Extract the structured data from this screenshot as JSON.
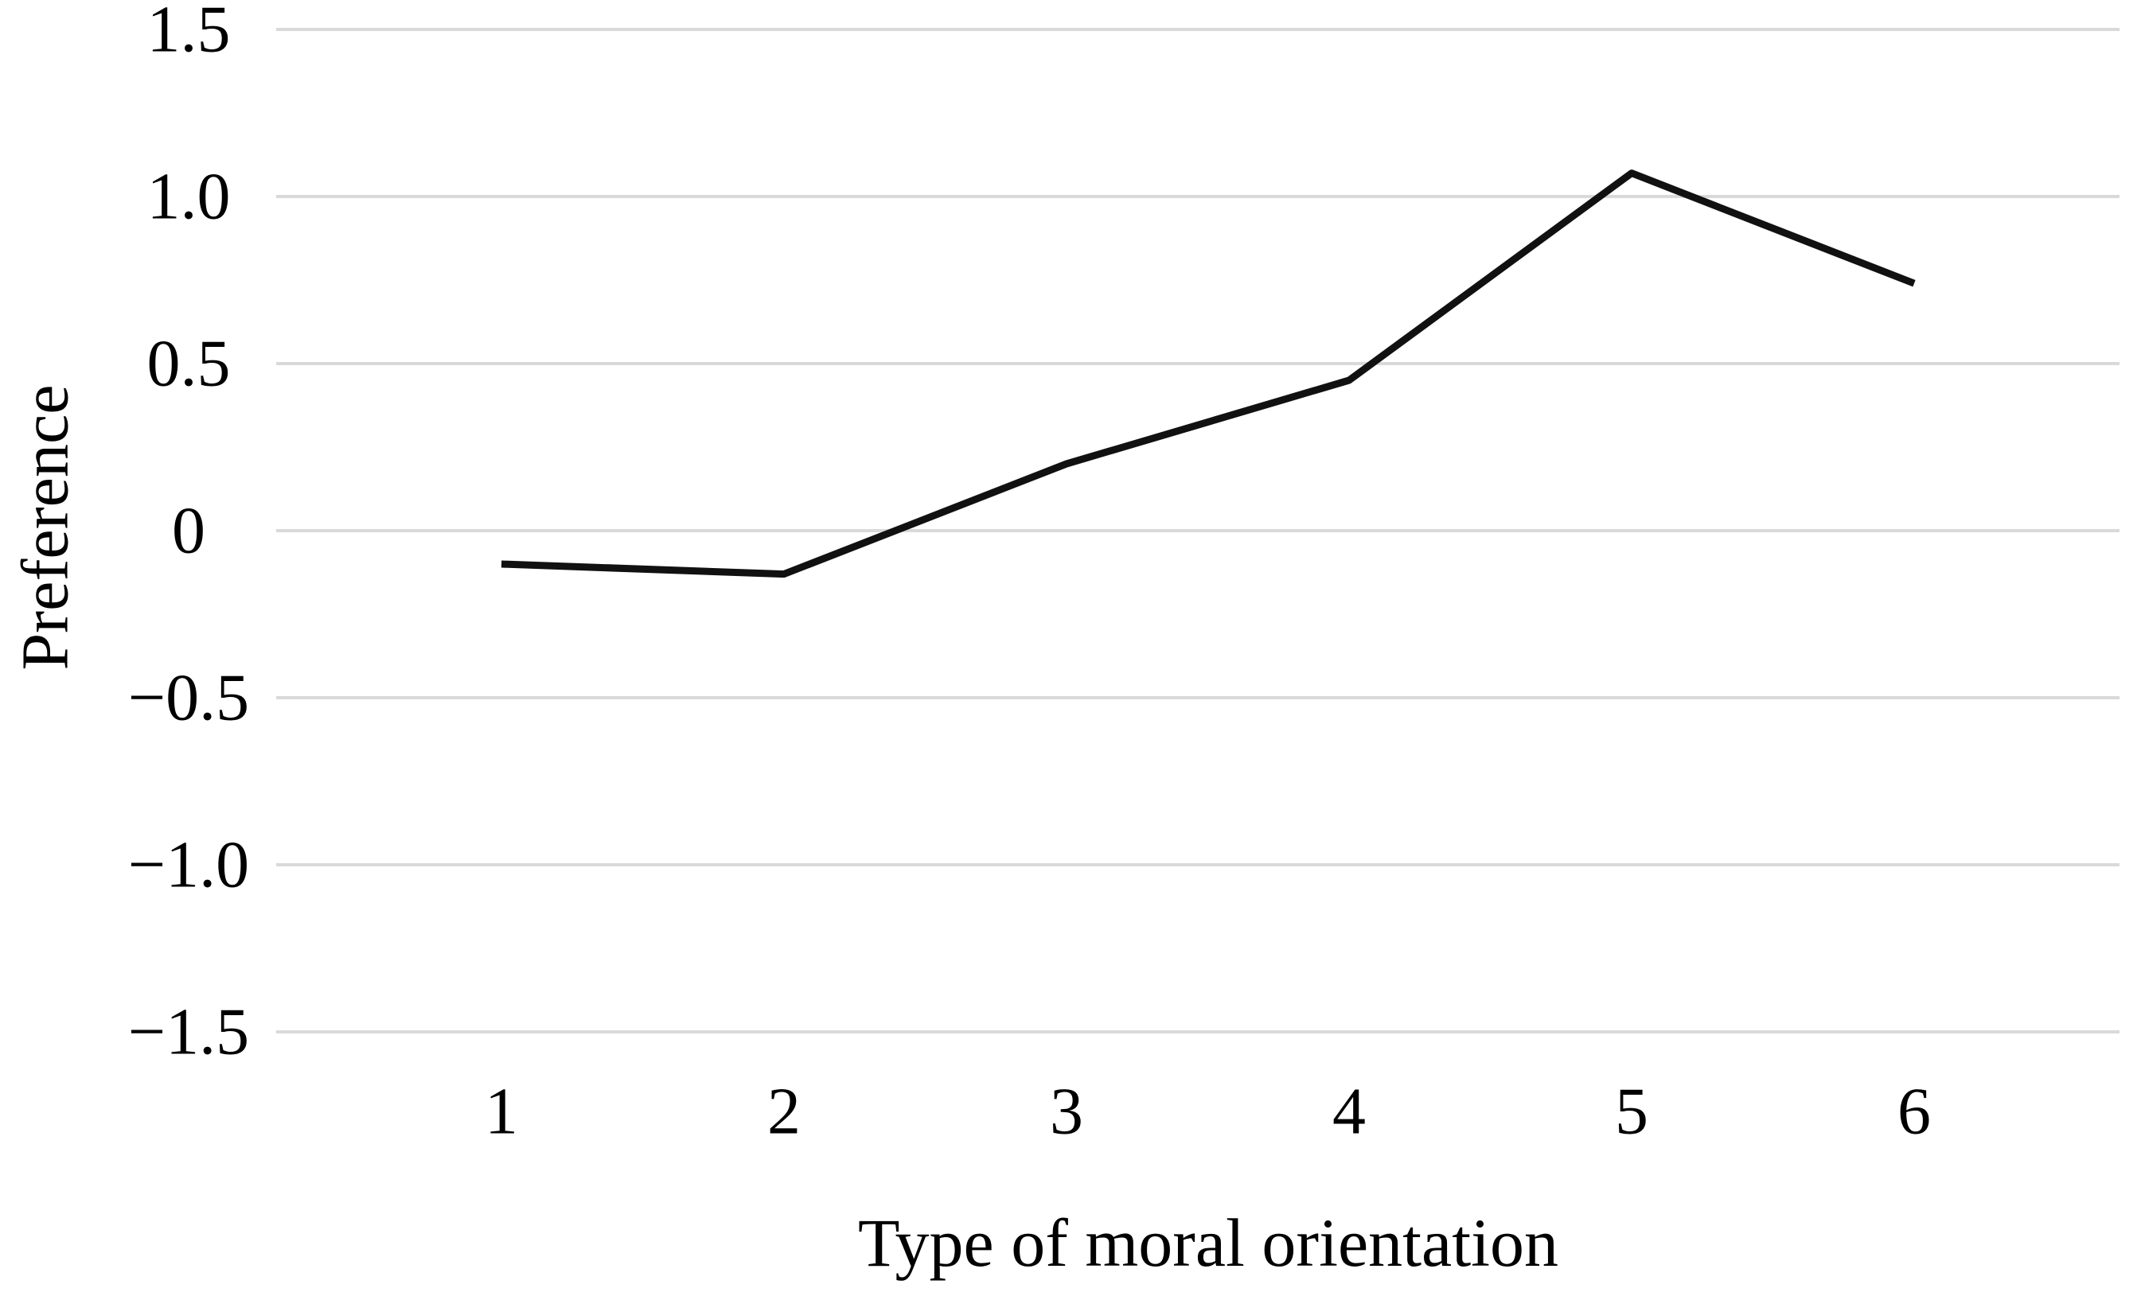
{
  "chart_data": {
    "type": "line",
    "title": "",
    "xlabel": "Type of moral orientation",
    "ylabel": "Preference",
    "categories": [
      "1",
      "2",
      "3",
      "4",
      "5",
      "6"
    ],
    "series": [
      {
        "name": "Preference",
        "values": [
          -0.1,
          -0.13,
          0.2,
          0.45,
          1.07,
          0.74
        ]
      }
    ],
    "ytick_labels": [
      "1.5",
      "1.0",
      "0.5",
      "0",
      "−0.5",
      "−1.0",
      "−1.5"
    ],
    "ytick_values": [
      1.5,
      1.0,
      0.5,
      0,
      -0.5,
      -1.0,
      -1.5
    ],
    "ylim": [
      -1.5,
      1.5
    ],
    "grid": "horizontal-only",
    "legend": "none",
    "markers": "none",
    "line_color": "#111111",
    "grid_color": "#d9d9d9",
    "background": "#ffffff"
  }
}
